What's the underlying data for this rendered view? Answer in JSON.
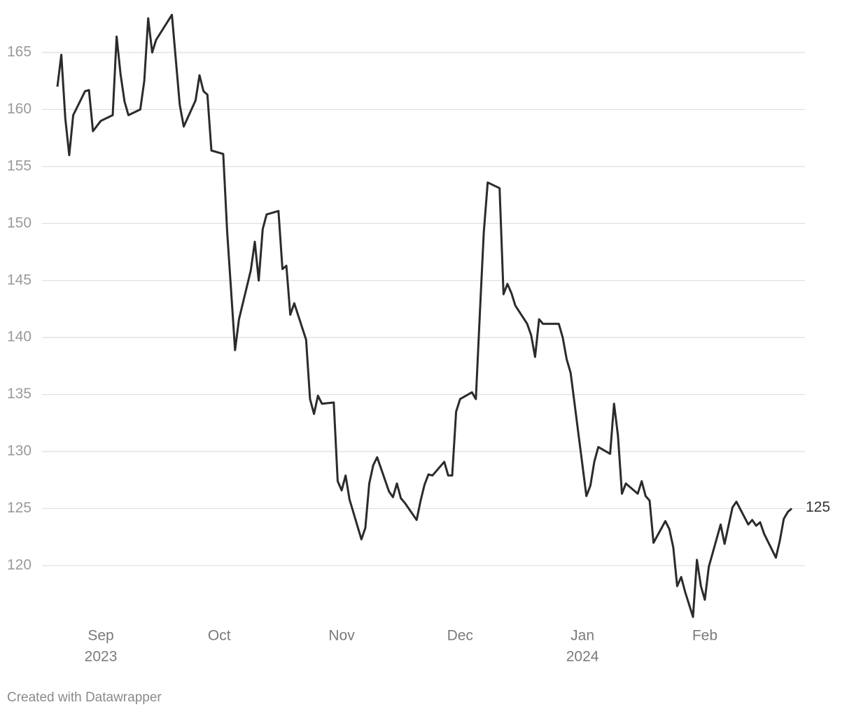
{
  "chart_data": {
    "type": "line",
    "color": "#2b2b2e",
    "x": [
      0,
      1,
      2,
      3,
      4,
      7,
      8,
      9,
      11,
      14,
      15,
      16,
      17,
      18,
      21,
      22,
      23,
      24,
      25,
      29,
      31,
      32,
      35,
      36,
      37,
      38,
      39,
      42,
      43,
      45,
      46,
      49,
      50,
      51,
      52,
      53,
      56,
      57,
      58,
      59,
      60,
      63,
      64,
      65,
      66,
      67,
      70,
      71,
      72,
      73,
      74,
      77,
      78,
      79,
      80,
      81,
      84,
      85,
      86,
      87,
      88,
      91,
      92,
      93,
      94,
      95,
      98,
      99,
      100,
      101,
      102,
      105,
      106,
      107,
      108,
      109,
      112,
      113,
      114,
      115,
      116,
      119,
      120,
      121,
      122,
      123,
      127,
      128,
      129,
      130,
      134,
      135,
      136,
      137,
      140,
      141,
      142,
      143,
      144,
      147,
      148,
      149,
      150,
      151,
      154,
      155,
      156,
      157,
      158,
      159,
      161,
      162,
      163,
      164,
      165,
      168,
      169,
      171,
      172,
      175,
      176,
      177,
      178,
      179,
      182,
      183,
      184,
      185,
      186
    ],
    "values": [
      162.0,
      164.8,
      159.2,
      156.0,
      159.5,
      161.6,
      161.7,
      158.1,
      159.0,
      159.5,
      166.4,
      163.1,
      160.7,
      159.5,
      160.0,
      162.5,
      168.0,
      165.0,
      166.1,
      168.3,
      160.4,
      158.5,
      160.8,
      163.0,
      161.6,
      161.3,
      156.4,
      156.1,
      149.3,
      138.9,
      141.6,
      145.9,
      148.4,
      145.0,
      149.5,
      150.8,
      151.1,
      146.0,
      146.3,
      142.0,
      143.0,
      139.8,
      134.6,
      133.3,
      134.9,
      134.2,
      134.3,
      127.4,
      126.6,
      127.9,
      125.8,
      122.3,
      123.3,
      127.2,
      128.8,
      129.5,
      126.5,
      126.0,
      127.2,
      125.9,
      125.5,
      124.0,
      125.7,
      127.1,
      128.0,
      127.9,
      129.1,
      127.9,
      127.9,
      133.5,
      134.6,
      135.2,
      134.6,
      142.1,
      149.2,
      153.6,
      153.1,
      143.8,
      144.7,
      143.9,
      142.8,
      141.2,
      140.2,
      138.3,
      141.6,
      141.2,
      141.2,
      140.0,
      138.1,
      136.9,
      126.1,
      127.0,
      129.1,
      130.4,
      129.8,
      134.2,
      131.4,
      126.3,
      127.2,
      126.3,
      127.4,
      126.1,
      125.7,
      122.0,
      123.9,
      123.2,
      121.6,
      118.2,
      119.0,
      117.7,
      115.5,
      120.5,
      118.2,
      117.0,
      119.9,
      123.6,
      121.9,
      125.1,
      125.6,
      123.6,
      124.0,
      123.5,
      123.8,
      122.8,
      120.7,
      122.2,
      124.1,
      124.7,
      125
    ],
    "xlim": [
      0,
      186
    ],
    "xticks": [
      {
        "value": 11,
        "label": "Sep"
      },
      {
        "value": 41,
        "label": "Oct"
      },
      {
        "value": 72,
        "label": "Nov"
      },
      {
        "value": 102,
        "label": "Dec"
      },
      {
        "value": 133,
        "label": "Jan"
      },
      {
        "value": 164,
        "label": "Feb"
      }
    ],
    "xticks_year": [
      {
        "value": 11,
        "label": "2023"
      },
      {
        "value": 133,
        "label": "2024"
      }
    ],
    "ylim": [
      114,
      169
    ],
    "yticks": [
      120,
      125,
      130,
      135,
      140,
      145,
      150,
      155,
      160,
      165
    ],
    "grid": true,
    "footer": "Created with Datawrapper"
  }
}
